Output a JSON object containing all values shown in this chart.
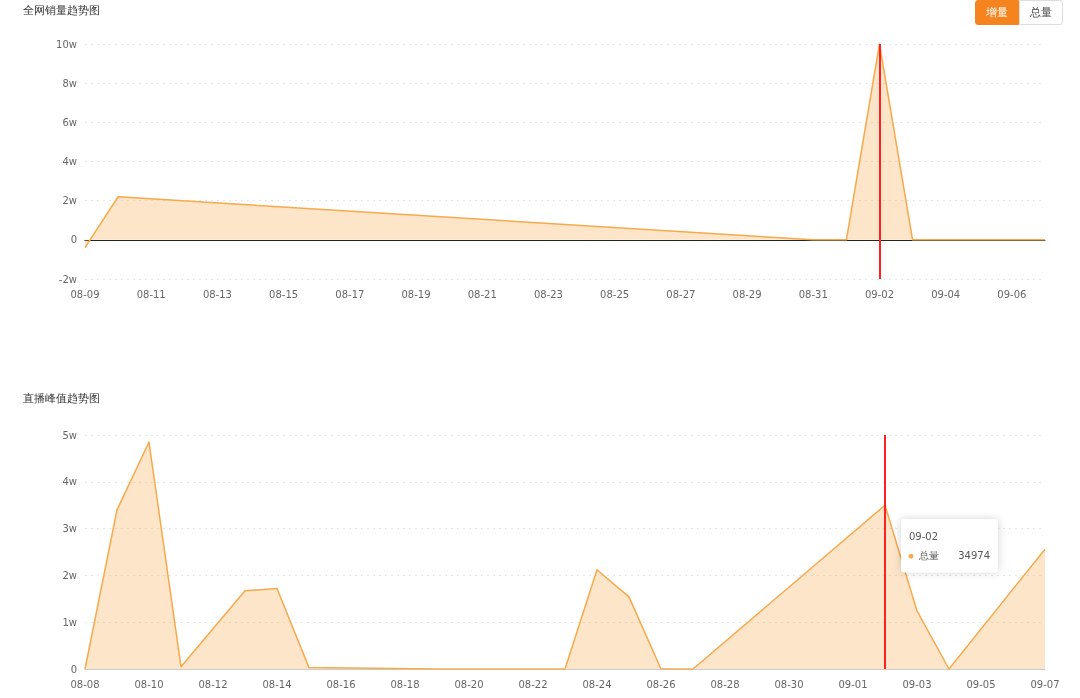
{
  "chart_data": [
    {
      "type": "area",
      "title": "全网销量趋势图",
      "x": [
        "--08-09",
        "--08-10",
        "--08-31",
        "--09-01",
        "--09-02",
        "--09-03",
        "--09-07"
      ],
      "series": [
        {
          "color": "#f7a94b",
          "values": [
            -0.4,
            2.2,
            0,
            0,
            10,
            0,
            0
          ]
        }
      ],
      "xlim": [
        "--08-09",
        "--09-07"
      ],
      "xticks": [
        {
          "value": "--08-09",
          "label": "08-09"
        },
        {
          "value": "--08-11",
          "label": "08-11"
        },
        {
          "value": "--08-13",
          "label": "08-13"
        },
        {
          "value": "--08-15",
          "label": "08-15"
        },
        {
          "value": "--08-17",
          "label": "08-17"
        },
        {
          "value": "--08-19",
          "label": "08-19"
        },
        {
          "value": "--08-21",
          "label": "08-21"
        },
        {
          "value": "--08-23",
          "label": "08-23"
        },
        {
          "value": "--08-25",
          "label": "08-25"
        },
        {
          "value": "--08-27",
          "label": "08-27"
        },
        {
          "value": "--08-29",
          "label": "08-29"
        },
        {
          "value": "--08-31",
          "label": "08-31"
        },
        {
          "value": "--09-02",
          "label": "09-02"
        },
        {
          "value": "--09-04",
          "label": "09-04"
        },
        {
          "value": "--09-06",
          "label": "09-06"
        }
      ],
      "ylim": [
        -2,
        10
      ],
      "yticks": [
        {
          "value": -2,
          "label": "-2w"
        },
        0,
        {
          "value": 2,
          "label": "2w"
        },
        {
          "value": 4,
          "label": "4w"
        },
        {
          "value": 6,
          "label": "6w"
        },
        {
          "value": 8,
          "label": "8w"
        },
        {
          "value": 10,
          "label": "10w"
        }
      ],
      "grid": "y",
      "marker": "none",
      "ref_lines": [
        {
          "axis": "x",
          "value": "--09-02",
          "color": "#ff2020"
        }
      ],
      "annotations": [
        "增量",
        "总量"
      ]
    },
    {
      "type": "area",
      "title": "直播峰值趋势图",
      "x": [
        "--08-08",
        "--08-09",
        "--08-10",
        "--08-11",
        "--08-13",
        "--08-14",
        "--08-15",
        "--08-19",
        "--08-23",
        "--08-24",
        "--08-25",
        "--08-26",
        "--08-27",
        "--09-02",
        "--09-03",
        "--09-04",
        "--09-07"
      ],
      "series": [
        {
          "name": "总量",
          "color": "#f7a94b",
          "values": [
            0,
            3.4,
            4.85,
            0.05,
            1.67,
            1.72,
            0.03,
            0,
            0,
            2.12,
            1.54,
            0,
            0,
            3.5,
            1.24,
            0,
            2.56
          ]
        }
      ],
      "xlim": [
        "--08-08",
        "--09-07"
      ],
      "xticks": [
        {
          "value": "--08-08",
          "label": "08-08"
        },
        {
          "value": "--08-10",
          "label": "08-10"
        },
        {
          "value": "--08-12",
          "label": "08-12"
        },
        {
          "value": "--08-14",
          "label": "08-14"
        },
        {
          "value": "--08-16",
          "label": "08-16"
        },
        {
          "value": "--08-18",
          "label": "08-18"
        },
        {
          "value": "--08-20",
          "label": "08-20"
        },
        {
          "value": "--08-22",
          "label": "08-22"
        },
        {
          "value": "--08-24",
          "label": "08-24"
        },
        {
          "value": "--08-26",
          "label": "08-26"
        },
        {
          "value": "--08-28",
          "label": "08-28"
        },
        {
          "value": "--08-30",
          "label": "08-30"
        },
        {
          "value": "--09-01",
          "label": "09-01"
        },
        {
          "value": "--09-03",
          "label": "09-03"
        },
        {
          "value": "--09-05",
          "label": "09-05"
        },
        {
          "value": "--09-07",
          "label": "09-07"
        }
      ],
      "ylim": [
        0,
        5
      ],
      "yticks": [
        0,
        {
          "value": 1,
          "label": "1w"
        },
        {
          "value": 2,
          "label": "2w"
        },
        {
          "value": 3,
          "label": "3w"
        },
        {
          "value": 4,
          "label": "4w"
        },
        {
          "value": 5,
          "label": "5w"
        }
      ],
      "grid": "y",
      "marker": "none",
      "ref_lines": [
        {
          "axis": "x",
          "value": "--09-02",
          "color": "#ff2020"
        }
      ],
      "annotations": [
        "09-02",
        "34974"
      ]
    }
  ]
}
